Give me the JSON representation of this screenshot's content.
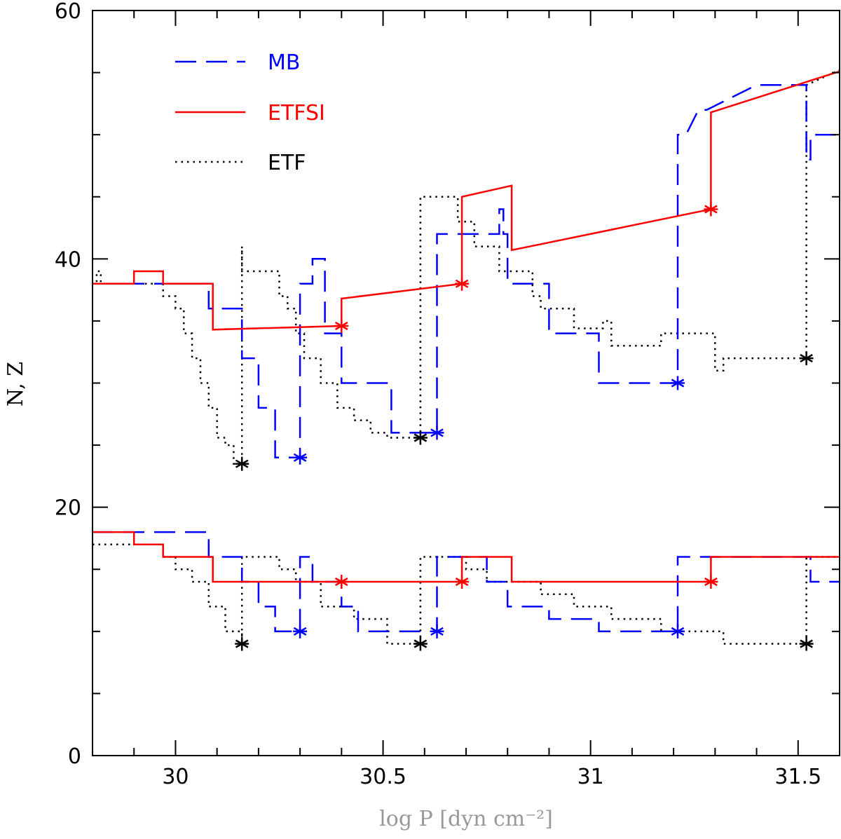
{
  "chart_data": {
    "type": "line",
    "title": "",
    "xlabel": "log P [dyn cm⁻²]",
    "ylabel": "N, Z",
    "xlim": [
      29.8,
      31.6
    ],
    "ylim": [
      0,
      60
    ],
    "xticks_major": [
      30,
      30.5,
      31,
      31.5
    ],
    "xtick_labels": [
      "30",
      "30.5",
      "31",
      "31.5"
    ],
    "yticks_major": [
      0,
      20,
      40,
      60
    ],
    "ytick_labels": [
      "0",
      "20",
      "40",
      "60"
    ],
    "grid": false,
    "legend_position": "top-left",
    "colors": {
      "MB": "#0000ff",
      "ETFSI": "#ff0000",
      "ETF": "#000000",
      "axis": "#000000",
      "xlabel": "#999999"
    },
    "series": [
      {
        "name": "MB",
        "style": "dashed",
        "N_x": [
          29.8,
          30.08,
          30.08,
          30.16,
          30.16,
          30.2,
          30.2,
          30.24,
          30.24,
          30.3,
          30.3,
          30.33,
          30.33,
          30.36,
          30.36,
          30.37,
          30.37,
          30.4,
          30.4,
          30.44,
          30.44,
          30.52,
          30.52,
          30.59,
          30.59,
          30.63,
          30.63,
          30.78,
          30.78,
          30.79,
          30.79,
          30.8,
          30.8,
          30.9,
          30.9,
          31.02,
          31.02,
          31.21,
          31.21,
          31.23,
          31.23,
          31.26,
          31.26,
          31.28,
          31.28,
          31.4,
          31.4,
          31.42,
          31.42,
          31.43,
          31.43,
          31.52,
          31.52,
          31.53,
          31.53,
          31.6
        ],
        "N_y": [
          38,
          38,
          36,
          36,
          32,
          32,
          28,
          28,
          24,
          24,
          38,
          38,
          40,
          40,
          34,
          34,
          34,
          34,
          30,
          30,
          30,
          30,
          26,
          26,
          26,
          26,
          42,
          42,
          44,
          44,
          42,
          42,
          38,
          38,
          34,
          34,
          30,
          30,
          50,
          50,
          50,
          52,
          52,
          52,
          52,
          54,
          54,
          54,
          54,
          54,
          54,
          54,
          48,
          48,
          50,
          50
        ],
        "Z_x": [
          29.8,
          30.08,
          30.08,
          30.16,
          30.16,
          30.2,
          30.2,
          30.24,
          30.24,
          30.3,
          30.3,
          30.33,
          30.33,
          30.4,
          30.4,
          30.44,
          30.44,
          30.52,
          30.52,
          30.59,
          30.59,
          30.63,
          30.63,
          30.75,
          30.75,
          30.8,
          30.8,
          30.9,
          30.9,
          31.02,
          31.02,
          31.21,
          31.21,
          31.53,
          31.53,
          31.6
        ],
        "Z_y": [
          18,
          18,
          16,
          16,
          14,
          14,
          12,
          12,
          10,
          10,
          16,
          16,
          14,
          14,
          12,
          12,
          10,
          10,
          10,
          10,
          10,
          10,
          16,
          16,
          14,
          14,
          12,
          12,
          11,
          11,
          10,
          10,
          16,
          16,
          14,
          14
        ],
        "markers": [
          {
            "x": 30.3,
            "y": 24
          },
          {
            "x": 30.63,
            "y": 26
          },
          {
            "x": 31.21,
            "y": 30
          },
          {
            "x": 30.3,
            "y": 10
          },
          {
            "x": 30.63,
            "y": 10
          },
          {
            "x": 31.21,
            "y": 10
          }
        ]
      },
      {
        "name": "ETFSI",
        "style": "solid",
        "N_x": [
          29.8,
          29.9,
          29.9,
          29.97,
          29.97,
          30.09,
          30.09,
          30.4,
          30.4,
          30.69,
          30.69,
          30.81,
          30.81,
          31.29,
          31.29,
          31.6
        ],
        "N_y": [
          38,
          38,
          39,
          39,
          38,
          38,
          34.3,
          34.6,
          36.8,
          38,
          45,
          45.9,
          40.7,
          44,
          51.8,
          55.1
        ],
        "Z_x": [
          29.8,
          29.9,
          29.9,
          29.97,
          29.97,
          30.09,
          30.09,
          30.4,
          30.69,
          30.69,
          30.81,
          30.81,
          31.29,
          31.29,
          31.6
        ],
        "Z_y": [
          18,
          18,
          17,
          17,
          16,
          16,
          14,
          14,
          14,
          16,
          16,
          14,
          14,
          16,
          16
        ],
        "markers": [
          {
            "x": 30.4,
            "y": 34.6
          },
          {
            "x": 30.69,
            "y": 38
          },
          {
            "x": 31.29,
            "y": 44
          },
          {
            "x": 30.4,
            "y": 14
          },
          {
            "x": 30.69,
            "y": 14
          },
          {
            "x": 31.29,
            "y": 14
          }
        ]
      },
      {
        "name": "ETF",
        "style": "dotted",
        "N_x": [
          29.8,
          29.81,
          29.81,
          29.82,
          29.82,
          29.97,
          29.97,
          30.0,
          30.0,
          30.02,
          30.02,
          30.04,
          30.04,
          30.06,
          30.06,
          30.08,
          30.08,
          30.1,
          30.1,
          30.12,
          30.12,
          30.14,
          30.14,
          30.16,
          30.16,
          30.16,
          30.16,
          30.25,
          30.25,
          30.27,
          30.27,
          30.29,
          30.29,
          30.31,
          30.31,
          30.35,
          30.35,
          30.39,
          30.39,
          30.43,
          30.43,
          30.47,
          30.47,
          30.51,
          30.51,
          30.55,
          30.55,
          30.59,
          30.59,
          30.59,
          30.59,
          30.68,
          30.68,
          30.72,
          30.72,
          30.78,
          30.78,
          30.86,
          30.86,
          30.88,
          30.88,
          30.96,
          30.96,
          31.03,
          31.03,
          31.05,
          31.05,
          31.17,
          31.17,
          31.3,
          31.3,
          31.32,
          31.32,
          31.52,
          31.52,
          31.6
        ],
        "N_y": [
          38,
          38,
          39,
          39,
          38,
          38,
          37,
          37,
          36,
          36,
          34,
          34,
          32,
          32,
          30,
          30,
          28,
          28,
          25.6,
          25.6,
          25,
          25,
          23.5,
          23.5,
          41,
          41,
          39,
          39,
          37,
          37,
          36,
          36,
          34,
          34,
          32,
          32,
          30,
          30,
          28,
          28,
          27,
          27,
          26,
          26,
          25.6,
          25.6,
          25.6,
          25.6,
          44.4,
          44.4,
          45,
          45,
          43,
          43,
          41,
          41,
          39,
          39,
          37,
          37,
          36,
          36,
          34.4,
          34.4,
          35,
          35,
          33,
          33,
          34,
          34,
          31,
          31,
          32,
          32,
          54,
          55.2
        ],
        "Z_x": [
          29.8,
          29.81,
          29.81,
          29.97,
          29.97,
          30.0,
          30.0,
          30.04,
          30.04,
          30.08,
          30.08,
          30.12,
          30.12,
          30.16,
          30.16,
          30.16,
          30.16,
          30.25,
          30.25,
          30.29,
          30.29,
          30.35,
          30.35,
          30.43,
          30.43,
          30.51,
          30.51,
          30.59,
          30.59,
          30.59,
          30.59,
          30.7,
          30.7,
          30.75,
          30.75,
          30.88,
          30.88,
          30.96,
          30.96,
          31.05,
          31.05,
          31.17,
          31.17,
          31.32,
          31.32,
          31.52,
          31.52,
          31.52,
          31.52,
          31.6
        ],
        "Z_y": [
          17,
          17,
          17,
          17,
          16,
          16,
          15,
          15,
          14,
          14,
          12,
          12,
          10,
          10,
          9,
          9,
          16,
          16,
          15,
          15,
          14,
          14,
          12,
          12,
          11,
          11,
          9,
          9,
          9,
          9,
          16,
          16,
          15,
          15,
          14,
          14,
          13,
          13,
          12,
          12,
          11,
          11,
          10,
          10,
          9,
          9,
          9,
          9,
          16,
          16
        ],
        "markers": [
          {
            "x": 30.16,
            "y": 23.5
          },
          {
            "x": 30.59,
            "y": 25.6
          },
          {
            "x": 31.52,
            "y": 32
          },
          {
            "x": 30.16,
            "y": 9
          },
          {
            "x": 30.59,
            "y": 9
          },
          {
            "x": 31.52,
            "y": 9
          }
        ]
      }
    ]
  }
}
